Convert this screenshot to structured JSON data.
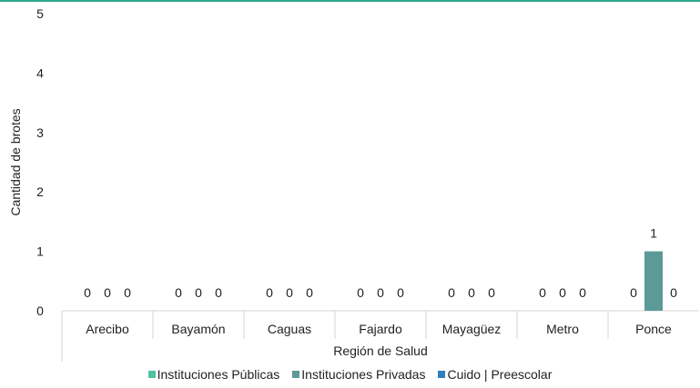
{
  "chart_data": {
    "type": "bar",
    "title": "",
    "xlabel": "Región de Salud",
    "ylabel": "Cantidad de brotes",
    "ylim": [
      0,
      5
    ],
    "yticks": [
      "0",
      "1",
      "2",
      "3",
      "4",
      "5"
    ],
    "grid": false,
    "legend_position": "bottom",
    "categories": [
      "Arecibo",
      "Bayamón",
      "Caguas",
      "Fajardo",
      "Mayagüez",
      "Metro",
      "Ponce"
    ],
    "series": [
      {
        "name": "Instituciones Públicas",
        "color": "#4fc3a1",
        "values": [
          0,
          0,
          0,
          0,
          0,
          0,
          0
        ]
      },
      {
        "name": "Instituciones Privadas",
        "color": "#5b9a96",
        "values": [
          0,
          0,
          0,
          0,
          0,
          0,
          1
        ]
      },
      {
        "name": "Cuido | Preescolar",
        "color": "#2e7fc0",
        "values": [
          0,
          0,
          0,
          0,
          0,
          0,
          0
        ]
      }
    ],
    "data_labels": [
      [
        "0",
        "0",
        "0",
        "0",
        "0",
        "0",
        "0"
      ],
      [
        "0",
        "0",
        "0",
        "0",
        "0",
        "0",
        "1"
      ],
      [
        "0",
        "0",
        "0",
        "0",
        "0",
        "0",
        "0"
      ]
    ],
    "accent_color": "#2aa889"
  }
}
